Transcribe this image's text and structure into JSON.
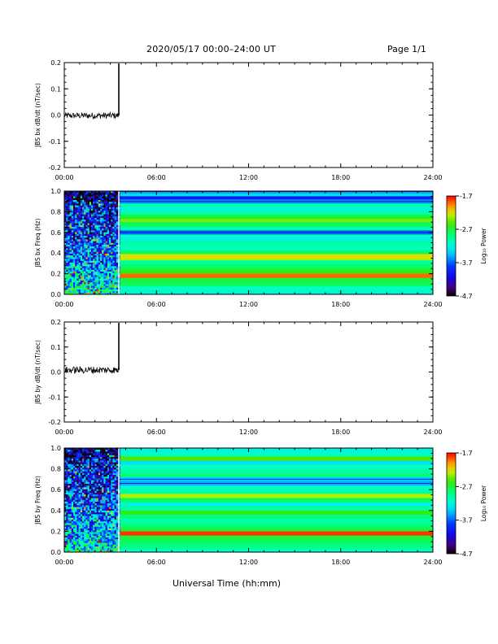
{
  "header": {
    "title": "2020/05/17  00:00–24:00 UT",
    "page": "Page 1/1"
  },
  "footer": {
    "x_axis_title": "Universal Time (hh:mm)"
  },
  "colorbar": {
    "label": "Log₁₀ Power",
    "ticks": [
      "-1.7",
      "-2.7",
      "-3.7",
      "-4.7"
    ],
    "tick_values": [
      -1.7,
      -2.7,
      -3.7,
      -4.7
    ],
    "range": [
      -4.7,
      -1.7
    ]
  },
  "chart_data": [
    {
      "type": "line",
      "ylabel": "JBS bx dB/dt (nT/sec)",
      "xlim": [
        0,
        24
      ],
      "ylim": [
        -0.2,
        0.2
      ],
      "x_ticks": [
        "00:00",
        "06:00",
        "12:00",
        "18:00",
        "24:00"
      ],
      "x_tick_values": [
        0,
        6,
        12,
        18,
        24
      ],
      "y_ticks": [
        "0.2",
        "0.1",
        "0.0",
        "-0.1",
        "-0.2"
      ],
      "y_tick_values": [
        0.2,
        0.1,
        0.0,
        -0.1,
        -0.2
      ],
      "series": [
        {
          "segments": [
            {
              "x_start": 0.0,
              "x_end": 3.55,
              "y_center": -0.002,
              "noise_amplitude": 0.012
            },
            {
              "x": [
                3.55,
                3.55
              ],
              "y": [
                -0.002,
                0.2
              ]
            }
          ]
        }
      ]
    },
    {
      "type": "heatmap",
      "ylabel": "JBS bx Freq (Hz)",
      "xlim": [
        0,
        24
      ],
      "ylim": [
        0,
        1.0
      ],
      "x_ticks": [
        "00:00",
        "06:00",
        "12:00",
        "18:00",
        "24:00"
      ],
      "x_tick_values": [
        0,
        6,
        12,
        18,
        24
      ],
      "y_ticks": [
        "1.0",
        "0.8",
        "0.6",
        "0.4",
        "0.2",
        "0.0"
      ],
      "y_tick_values": [
        1.0,
        0.8,
        0.6,
        0.4,
        0.2,
        0.0
      ],
      "noisy_interval": [
        0,
        3.55
      ],
      "band_freqs": [
        0.015,
        0.06,
        0.1,
        0.135,
        0.18,
        0.22,
        0.27,
        0.31,
        0.35,
        0.37,
        0.41,
        0.45,
        0.49,
        0.53,
        0.57,
        0.6,
        0.64,
        0.68,
        0.72,
        0.75,
        0.79,
        0.83,
        0.87,
        0.9,
        0.94,
        0.97,
        0.995
      ],
      "band_power": [
        -3.2,
        -3.1,
        -2.8,
        -2.7,
        -1.9,
        -2.6,
        -2.8,
        -3.0,
        -2.3,
        -2.2,
        -2.8,
        -3.1,
        -3.0,
        -3.2,
        -3.1,
        -3.7,
        -3.0,
        -2.8,
        -2.4,
        -2.7,
        -3.0,
        -3.2,
        -3.0,
        -3.6,
        -4.0,
        -3.3,
        -3.5
      ]
    },
    {
      "type": "line",
      "ylabel": "JBS by dB/dt (nT/sec)",
      "xlim": [
        0,
        24
      ],
      "ylim": [
        -0.2,
        0.2
      ],
      "x_ticks": [
        "00:00",
        "06:00",
        "12:00",
        "18:00",
        "24:00"
      ],
      "x_tick_values": [
        0,
        6,
        12,
        18,
        24
      ],
      "y_ticks": [
        "0.2",
        "0.1",
        "0.0",
        "-0.1",
        "-0.2"
      ],
      "y_tick_values": [
        0.2,
        0.1,
        0.0,
        -0.1,
        -0.2
      ],
      "series": [
        {
          "segments": [
            {
              "x_start": 0.0,
              "x_end": 3.55,
              "y_center": 0.008,
              "noise_amplitude": 0.014
            },
            {
              "x": [
                3.55,
                3.55
              ],
              "y": [
                0.008,
                0.2
              ]
            }
          ]
        }
      ]
    },
    {
      "type": "heatmap",
      "ylabel": "JBS by Freq (Hz)",
      "xlim": [
        0,
        24
      ],
      "ylim": [
        0,
        1.0
      ],
      "x_ticks": [
        "00:00",
        "06:00",
        "12:00",
        "18:00",
        "24:00"
      ],
      "x_tick_values": [
        0,
        6,
        12,
        18,
        24
      ],
      "y_ticks": [
        "1.0",
        "0.8",
        "0.6",
        "0.4",
        "0.2",
        "0.0"
      ],
      "y_tick_values": [
        1.0,
        0.8,
        0.6,
        0.4,
        0.2,
        0.0
      ],
      "noisy_interval": [
        0,
        3.55
      ],
      "band_freqs": [
        0.015,
        0.06,
        0.1,
        0.14,
        0.18,
        0.22,
        0.26,
        0.3,
        0.34,
        0.38,
        0.42,
        0.46,
        0.5,
        0.54,
        0.58,
        0.62,
        0.66,
        0.7,
        0.74,
        0.78,
        0.82,
        0.86,
        0.9,
        0.94,
        0.98
      ],
      "band_power": [
        -3.1,
        -2.9,
        -2.8,
        -2.7,
        -1.8,
        -2.7,
        -2.9,
        -3.0,
        -2.9,
        -2.6,
        -3.0,
        -3.2,
        -2.8,
        -2.3,
        -3.0,
        -3.1,
        -3.5,
        -3.4,
        -2.9,
        -3.0,
        -3.1,
        -3.3,
        -2.5,
        -3.1,
        -3.2
      ]
    }
  ]
}
